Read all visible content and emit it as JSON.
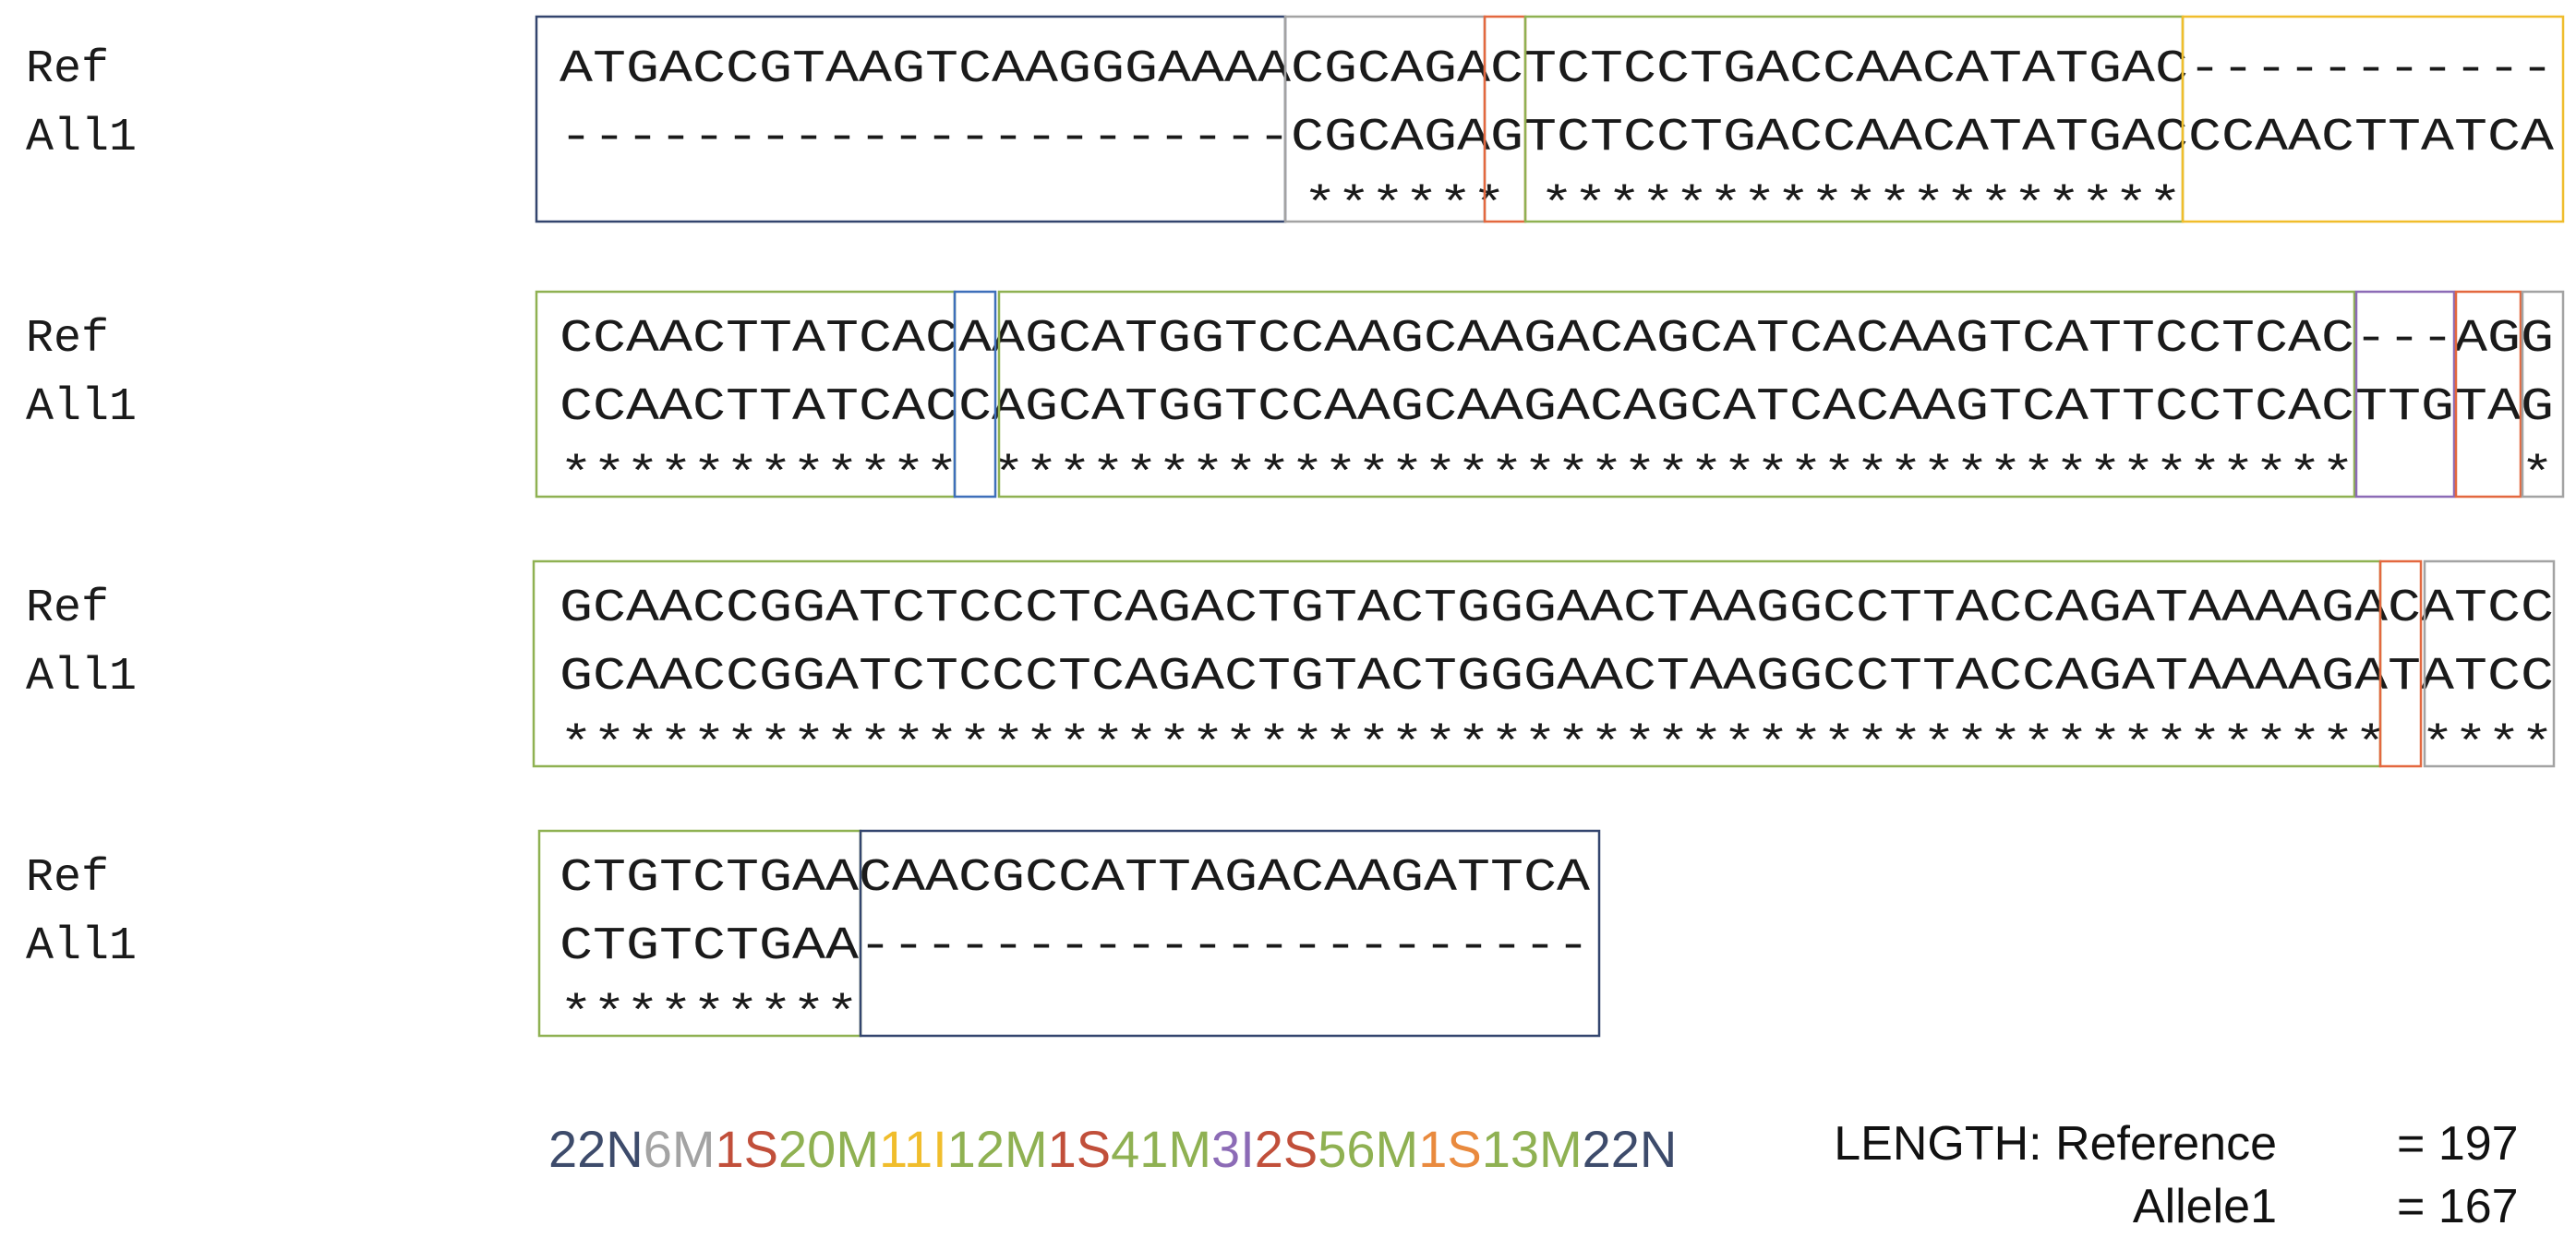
{
  "colors": {
    "N": "#3d4b6b",
    "M_gray": "#a3a3a3",
    "S": "#c14f3a",
    "M_green": "#8fb152",
    "I_yellow": "#f0bd2c",
    "I_purple": "#8c6bb6",
    "S_orange": "#e98a3e",
    "box_navy": "#33456e",
    "box_blue": "#3e6fba",
    "box_red": "#e3683f"
  },
  "blocks": [
    {
      "ref_label": "Ref",
      "allele_label": "All1",
      "ref": "ATGACCGTAAGTCAAGGGAAAACGCAGACTCTCCTGACCAACATATGAC-----------",
      "allele": "----------------------CGCAGAGTCTCCTGACCAACATATGACCCAACTTATCA",
      "match": "                      ****** *******************           "
    },
    {
      "ref_label": "Ref",
      "allele_label": "All1",
      "ref": "CCAACTTATCACAAGCATGGTCCAAGCAAGACAGCATCACAAGTCATTCCTCAC---AGG",
      "allele": "CCAACTTATCACCAGCATGGTCCAAGCAAGACAGCATCACAAGTCATTCCTCACTTGTAG",
      "match": "************ *****************************************     *"
    },
    {
      "ref_label": "Ref",
      "allele_label": "All1",
      "ref": "GCAACCGGATCTCCCTCAGACTGTACTGGGAACTAAGGCCTTACCAGATAAAAGACATCC",
      "allele": "GCAACCGGATCTCCCTCAGACTGTACTGGGAACTAAGGCCTTACCAGATAAAAGATATCC",
      "match": "******************************************************* ****"
    },
    {
      "ref_label": "Ref",
      "allele_label": "All1",
      "ref": "CTGTCTGAACAACGCCATTAGACAAGATTCA",
      "allele": "CTGTCTGAA----------------------",
      "match": "*********"
    }
  ],
  "cigar": [
    {
      "text": "22N",
      "color": "#3d4b6b"
    },
    {
      "text": "6M",
      "color": "#a3a3a3"
    },
    {
      "text": "1S",
      "color": "#c14f3a"
    },
    {
      "text": "20M",
      "color": "#8fb152"
    },
    {
      "text": "11I",
      "color": "#f0bd2c"
    },
    {
      "text": "12M",
      "color": "#8fb152"
    },
    {
      "text": "1S",
      "color": "#c14f3a"
    },
    {
      "text": "41M",
      "color": "#8fb152"
    },
    {
      "text": "3I",
      "color": "#8c6bb6"
    },
    {
      "text": "2S",
      "color": "#c14f3a"
    },
    {
      "text": "56M",
      "color": "#8fb152"
    },
    {
      "text": "1S",
      "color": "#e98a3e"
    },
    {
      "text": "13M",
      "color": "#8fb152"
    },
    {
      "text": "22N",
      "color": "#3d4b6b"
    }
  ],
  "length": {
    "title": "LENGTH: Reference",
    "reference_value": "= 197",
    "allele_label": "Allele1",
    "allele_value": "= 167"
  }
}
